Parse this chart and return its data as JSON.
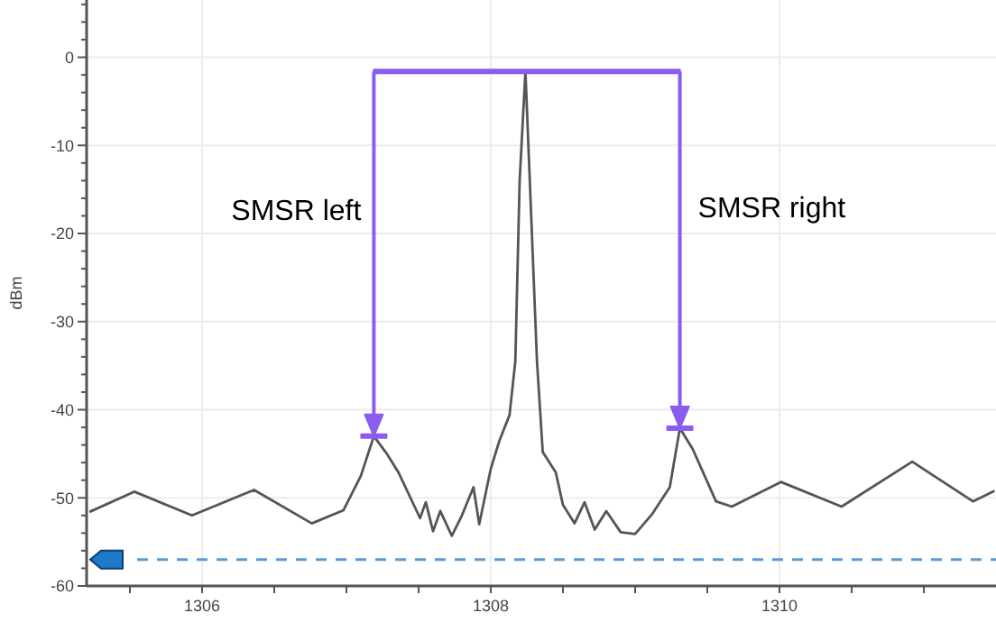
{
  "chart_data": {
    "type": "line",
    "ylabel": "dBm",
    "x": [
      1305.22,
      1305.53,
      1305.93,
      1306.36,
      1306.76,
      1306.98,
      1307.1,
      1307.19,
      1307.28,
      1307.36,
      1307.51,
      1307.55,
      1307.6,
      1307.65,
      1307.73,
      1307.8,
      1307.88,
      1307.92,
      1308.0,
      1308.06,
      1308.13,
      1308.17,
      1308.2,
      1308.24,
      1308.28,
      1308.32,
      1308.36,
      1308.45,
      1308.5,
      1308.58,
      1308.65,
      1308.72,
      1308.8,
      1308.9,
      1309.0,
      1309.12,
      1309.24,
      1309.31,
      1309.4,
      1309.56,
      1309.67,
      1310.01,
      1310.43,
      1310.92,
      1311.34,
      1311.49
    ],
    "series": [
      {
        "color": "#555555",
        "values": [
          -51.6,
          -49.3,
          -52.0,
          -49.1,
          -52.9,
          -51.4,
          -47.5,
          -43.0,
          -45.0,
          -47.1,
          -52.3,
          -50.5,
          -53.8,
          -51.5,
          -54.3,
          -52.0,
          -48.8,
          -53.0,
          -46.7,
          -43.5,
          -40.6,
          -34.5,
          -14.0,
          -1.6,
          -18.0,
          -34.5,
          -44.8,
          -47.1,
          -50.8,
          -52.9,
          -50.5,
          -53.6,
          -51.5,
          -53.9,
          -54.1,
          -51.8,
          -48.8,
          -42.1,
          -44.5,
          -50.4,
          -51.0,
          -48.2,
          -51.0,
          -45.9,
          -50.4,
          -49.2
        ]
      }
    ],
    "xlim": [
      1305.2,
      1311.5
    ],
    "ylim": [
      -60,
      6.5
    ],
    "xticks": [
      {
        "value": 1305.5,
        "label": null
      },
      1306,
      {
        "value": 1306.5,
        "label": null
      },
      {
        "value": 1307,
        "label": null
      },
      {
        "value": 1307.5,
        "label": null
      },
      1308,
      {
        "value": 1308.5,
        "label": null
      },
      {
        "value": 1309,
        "label": null
      },
      {
        "value": 1309.5,
        "label": null
      },
      1310,
      {
        "value": 1310.5,
        "label": null
      },
      {
        "value": 1311,
        "label": null
      }
    ],
    "yticks": [
      -60,
      {
        "value": -58,
        "label": null
      },
      {
        "value": -56,
        "label": null
      },
      {
        "value": -54,
        "label": null
      },
      {
        "value": -52,
        "label": null
      },
      -50,
      {
        "value": -48,
        "label": null
      },
      {
        "value": -46,
        "label": null
      },
      {
        "value": -44,
        "label": null
      },
      {
        "value": -42,
        "label": null
      },
      -40,
      {
        "value": -38,
        "label": null
      },
      {
        "value": -36,
        "label": null
      },
      {
        "value": -34,
        "label": null
      },
      {
        "value": -32,
        "label": null
      },
      -30,
      {
        "value": -28,
        "label": null
      },
      {
        "value": -26,
        "label": null
      },
      {
        "value": -24,
        "label": null
      },
      {
        "value": -22,
        "label": null
      },
      -20,
      {
        "value": -18,
        "label": null
      },
      {
        "value": -16,
        "label": null
      },
      {
        "value": -14,
        "label": null
      },
      {
        "value": -12,
        "label": null
      },
      -10,
      {
        "value": -8,
        "label": null
      },
      {
        "value": -6,
        "label": null
      },
      {
        "value": -4,
        "label": null
      },
      {
        "value": -2,
        "label": null
      },
      0,
      {
        "value": 2,
        "label": null
      },
      {
        "value": 4,
        "label": null
      },
      {
        "value": 6,
        "label": null
      }
    ],
    "grid": true,
    "marker": "none",
    "line_style": "solid",
    "ref_lines": [
      {
        "axis": "y",
        "value": -57,
        "color": "#5b9bd5",
        "line_style": "dashed"
      },
      {
        "axis": "x",
        "value": 1307.19,
        "label": "SMSR left",
        "color": "#8a5cf0"
      },
      {
        "axis": "x",
        "value": 1309.31,
        "label": "SMSR right",
        "color": "#8a5cf0"
      }
    ]
  }
}
